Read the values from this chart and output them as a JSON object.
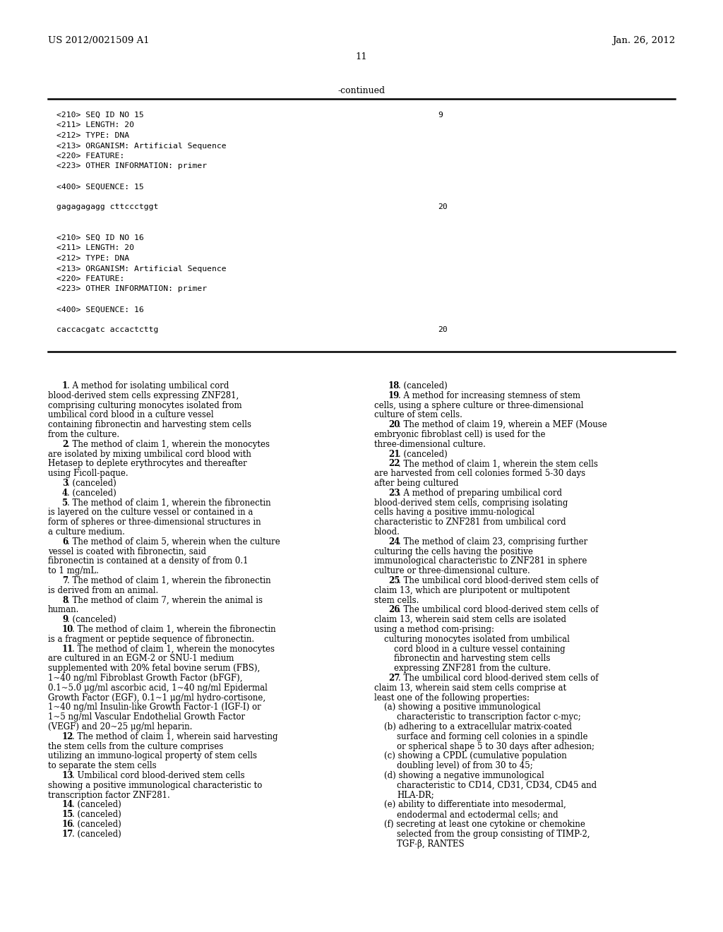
{
  "bg_color": "#ffffff",
  "header_left": "US 2012/0021509 A1",
  "header_right": "Jan. 26, 2012",
  "page_number": "11",
  "continued_text": "-continued",
  "monospace_block": [
    "<210> SEQ ID NO 15",
    "<211> LENGTH: 20",
    "<212> TYPE: DNA",
    "<213> ORGANISM: Artificial Sequence",
    "<220> FEATURE:",
    "<223> OTHER INFORMATION: primer",
    "",
    "<400> SEQUENCE: 15",
    "",
    "gagagagagg cttccctggt",
    "",
    "",
    "<210> SEQ ID NO 16",
    "<211> LENGTH: 20",
    "<212> TYPE: DNA",
    "<213> ORGANISM: Artificial Sequence",
    "<220> FEATURE:",
    "<223> OTHER INFORMATION: primer",
    "",
    "<400> SEQUENCE: 16",
    "",
    "caccacgatc accactcttg"
  ],
  "seq_numbers": [
    9,
    -1,
    -1,
    -1,
    -1,
    -1,
    -1,
    -1,
    -1,
    20,
    -1,
    -1,
    -1,
    -1,
    -1,
    -1,
    -1,
    -1,
    -1,
    -1,
    -1,
    20
  ],
  "claims_left_col": [
    {
      "type": "claim",
      "num": "1",
      "indent": true,
      "text": ". A method for isolating umbilical cord blood-derived stem cells expressing ZNF281, comprising culturing monocytes isolated from umbilical cord blood in a culture vessel containing fibronectin and harvesting stem cells from the culture."
    },
    {
      "type": "claim",
      "num": "2",
      "indent": true,
      "text": ". The method of claim 1, wherein the monocytes are isolated by mixing umbilical cord blood with Hetasep to deplete erythrocytes and thereafter using Ficoll-paque."
    },
    {
      "type": "claim",
      "num": "3",
      "indent": true,
      "text": ". (canceled)"
    },
    {
      "type": "claim",
      "num": "4",
      "indent": true,
      "text": ". (canceled)"
    },
    {
      "type": "claim",
      "num": "5",
      "indent": true,
      "text": ". The method of claim 1, wherein the fibronectin is layered on the culture vessel or contained in a form of spheres or three-dimensional structures in a culture medium."
    },
    {
      "type": "claim",
      "num": "6",
      "indent": true,
      "text": ". The method of claim 5, wherein when the culture vessel is coated with fibronectin, said fibronectin is contained at a density of from 0.1 to 1 mg/mL."
    },
    {
      "type": "claim",
      "num": "7",
      "indent": true,
      "text": ". The method of claim 1, wherein the fibronectin is derived from an animal."
    },
    {
      "type": "claim",
      "num": "8",
      "indent": true,
      "text": ". The method of claim 7, wherein the animal is human."
    },
    {
      "type": "claim",
      "num": "9",
      "indent": true,
      "text": ". (canceled)"
    },
    {
      "type": "claim",
      "num": "10",
      "indent": true,
      "text": ". The method of claim 1, wherein the fibronectin is a fragment or peptide sequence of fibronectin."
    },
    {
      "type": "claim",
      "num": "11",
      "indent": true,
      "text": ". The method of claim 1, wherein the monocytes are cultured in an EGM-2 or SNU-1 medium supplemented with 20% fetal bovine serum (FBS), 1~40 ng/ml Fibroblast Growth Factor (bFGF), 0.1~5.0 μg/ml ascorbic acid, 1~40 ng/ml Epidermal Growth Factor (EGF), 0.1~1 μg/ml hydro-cortisone, 1~40 ng/ml Insulin-like Growth Factor-1 (IGF-I) or 1~5 ng/ml Vascular Endothelial Growth Factor (VEGF) and 20~25 μg/ml heparin."
    },
    {
      "type": "claim",
      "num": "12",
      "indent": true,
      "text": ". The method of claim 1, wherein said harvesting the stem cells from the culture comprises utilizing an immuno-logical property of stem cells to separate the stem cells"
    },
    {
      "type": "claim",
      "num": "13",
      "indent": true,
      "text": ". Umbilical cord blood-derived stem cells showing a positive immunological characteristic to transcription factor ZNF281."
    },
    {
      "type": "claim",
      "num": "14",
      "indent": true,
      "text": ". (canceled)"
    },
    {
      "type": "claim",
      "num": "15",
      "indent": true,
      "text": ". (canceled)"
    },
    {
      "type": "claim",
      "num": "16",
      "indent": true,
      "text": ". (canceled)"
    },
    {
      "type": "claim",
      "num": "17",
      "indent": true,
      "text": ". (canceled)"
    }
  ],
  "claims_right_col": [
    {
      "type": "claim",
      "num": "18",
      "indent": false,
      "text": ". (canceled)"
    },
    {
      "type": "claim",
      "num": "19",
      "indent": false,
      "text": ". A method for increasing stemness of stem cells, using a sphere culture or three-dimensional culture of stem cells."
    },
    {
      "type": "claim",
      "num": "20",
      "indent": false,
      "text": ". The method of claim 19, wherein a MEF (Mouse embryonic fibroblast cell) is used for the three-dimensional culture."
    },
    {
      "type": "claim",
      "num": "21",
      "indent": false,
      "text": ". (canceled)"
    },
    {
      "type": "claim",
      "num": "22",
      "indent": false,
      "text": ". The method of claim 1, wherein the stem cells are harvested from cell colonies formed 5-30 days after being cultured"
    },
    {
      "type": "claim",
      "num": "23",
      "indent": false,
      "text": ". A method of preparing umbilical cord blood-derived stem cells, comprising isolating cells having a positive immu-nological characteristic to ZNF281 from umbilical cord blood."
    },
    {
      "type": "claim",
      "num": "24",
      "indent": false,
      "text": ". The method of claim 23, comprising further culturing the cells having the positive immunological characteristic to ZNF281 in sphere culture or three-dimensional culture."
    },
    {
      "type": "claim",
      "num": "25",
      "indent": false,
      "text": ". The umbilical cord blood-derived stem cells of claim 13, which are pluripotent or multipotent stem cells."
    },
    {
      "type": "claim",
      "num": "26",
      "indent": false,
      "text": ". The umbilical cord blood-derived stem cells of claim 13, wherein said stem cells are isolated using a method com-prising:"
    },
    {
      "type": "sub_indent",
      "text": "culturing monocytes isolated from umbilical cord blood in a culture vessel containing fibronectin and harvesting stem cells expressing ZNF281 from the culture."
    },
    {
      "type": "claim",
      "num": "27",
      "indent": false,
      "text": ". The umbilical cord blood-derived stem cells of claim 13, wherein said stem cells comprise at least one of the following properties:"
    },
    {
      "type": "sub_indent2",
      "text": "(a) showing a positive immunological characteristic to transcription factor c-myc;"
    },
    {
      "type": "sub_indent2",
      "text": "(b) adhering to a extracellular matrix-coated surface and forming cell colonies in a spindle or spherical shape 5 to 30 days after adhesion;"
    },
    {
      "type": "sub_indent2",
      "text": "(c) showing a CPDL (cumulative population doubling level) of from 30 to 45;"
    },
    {
      "type": "sub_indent2",
      "text": "(d) showing a negative immunological characteristic to CD14, CD31, CD34, CD45 and HLA-DR;"
    },
    {
      "type": "sub_indent2",
      "text": "(e) ability to differentiate into mesodermal, endodermal and ectodermal cells; and"
    },
    {
      "type": "sub_indent2",
      "text": "(f) secreting at least one cytokine or chemokine selected from the group consisting of TIMP-2, TGF-β, RANTES"
    }
  ]
}
